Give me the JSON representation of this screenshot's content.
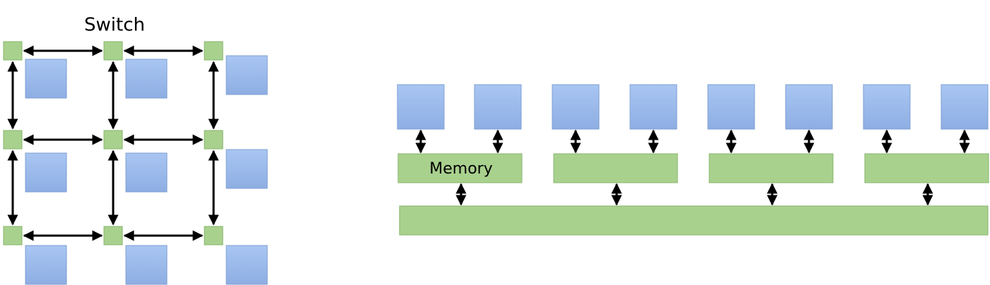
{
  "labels": {
    "switch": "Switch",
    "memory": "Memory"
  }
}
